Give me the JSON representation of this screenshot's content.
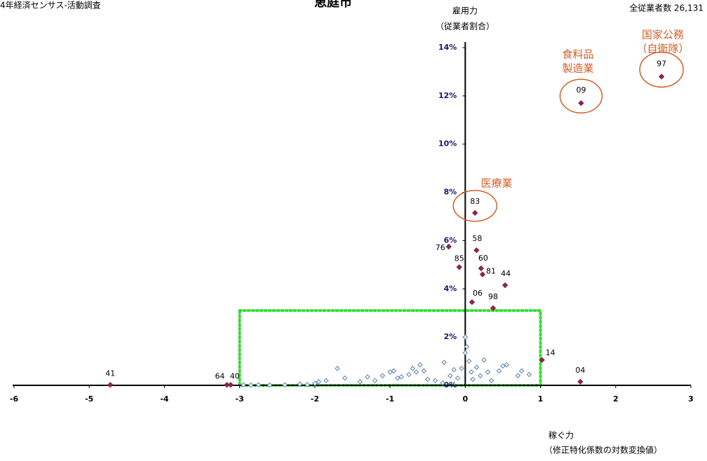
{
  "chart_data": {
    "type": "scatter",
    "source": "4年経済センサス-活動調査",
    "title": "恵庭市",
    "note": "全従業者数  26,131",
    "y_label": [
      "雇用力",
      "（従業者割合）"
    ],
    "x_label": [
      "稼ぐ力",
      "（修正特化係数の対数変換値）"
    ],
    "xlim": [
      -6,
      3
    ],
    "ylim": [
      0,
      14
    ],
    "xticks": [
      -6,
      -5,
      -4,
      -3,
      -2,
      -1,
      0,
      1,
      2,
      3
    ],
    "yticks": [
      {
        "value": 0,
        "label": "0%"
      },
      {
        "value": 2,
        "label": "2%"
      },
      {
        "value": 4,
        "label": "4%"
      },
      {
        "value": 6,
        "label": "6%"
      },
      {
        "value": 8,
        "label": "8%"
      },
      {
        "value": 10,
        "label": "10%"
      },
      {
        "value": 12,
        "label": "12%"
      },
      {
        "value": 14,
        "label": "14%"
      }
    ],
    "series": [
      {
        "color": "#8b2646",
        "point_labels": [
          "41",
          "64",
          "40",
          "76",
          "85",
          "58",
          "60",
          "81",
          "44",
          "06",
          "98",
          "83",
          "09",
          "97",
          "14",
          "04"
        ],
        "x": [
          -4.72,
          -3.17,
          -3.12,
          -0.22,
          -0.08,
          0.15,
          0.21,
          0.23,
          0.53,
          0.09,
          0.37,
          0.13,
          1.54,
          2.61,
          1.02,
          1.53
        ],
        "values": [
          0.02,
          0.02,
          0.02,
          5.75,
          4.9,
          5.6,
          4.85,
          4.6,
          4.15,
          3.45,
          3.2,
          7.15,
          11.7,
          12.8,
          1.05,
          0.15
        ]
      },
      {
        "color": "#6f93b8",
        "x": [
          -2.95,
          -2.85,
          -2.75,
          -2.6,
          -2.4,
          -2.2,
          -2.1,
          -2.0,
          -1.95,
          -1.85,
          -1.7,
          -1.6,
          -1.4,
          -1.3,
          -1.2,
          -1.1,
          -1.0,
          -0.95,
          -0.9,
          -0.85,
          -0.75,
          -0.7,
          -0.65,
          -0.6,
          -0.55,
          -0.5,
          -0.4,
          -0.3,
          -0.28,
          -0.2,
          -0.15,
          -0.1,
          -0.05,
          0.0,
          0.0,
          0.02,
          0.05,
          0.08,
          0.1,
          0.15,
          0.2,
          0.25,
          0.3,
          0.35,
          0.45,
          0.5,
          0.55,
          0.7,
          0.75,
          0.85
        ],
        "values": [
          0.02,
          0.01,
          0.02,
          0.01,
          0.02,
          0.05,
          0.03,
          0.08,
          0.15,
          0.2,
          0.7,
          0.3,
          0.15,
          0.35,
          0.2,
          0.4,
          0.55,
          0.6,
          0.3,
          0.35,
          0.45,
          0.7,
          0.55,
          0.85,
          0.6,
          0.25,
          0.2,
          0.1,
          0.95,
          0.4,
          0.65,
          0.3,
          0.7,
          1.35,
          2.0,
          1.6,
          1.0,
          0.55,
          0.25,
          0.75,
          0.4,
          1.05,
          0.55,
          0.2,
          0.6,
          0.8,
          0.85,
          0.4,
          0.6,
          0.45
        ]
      }
    ],
    "region": {
      "color": "#33dd33",
      "xlim": [
        -3,
        1
      ],
      "ylim": [
        0,
        3.1
      ]
    },
    "annotations": [
      [
        "医療業"
      ],
      [
        "食料品",
        "製造業"
      ],
      [
        "国家公務",
        "（自衛隊）"
      ]
    ],
    "annotation_color": "#d0602a"
  }
}
